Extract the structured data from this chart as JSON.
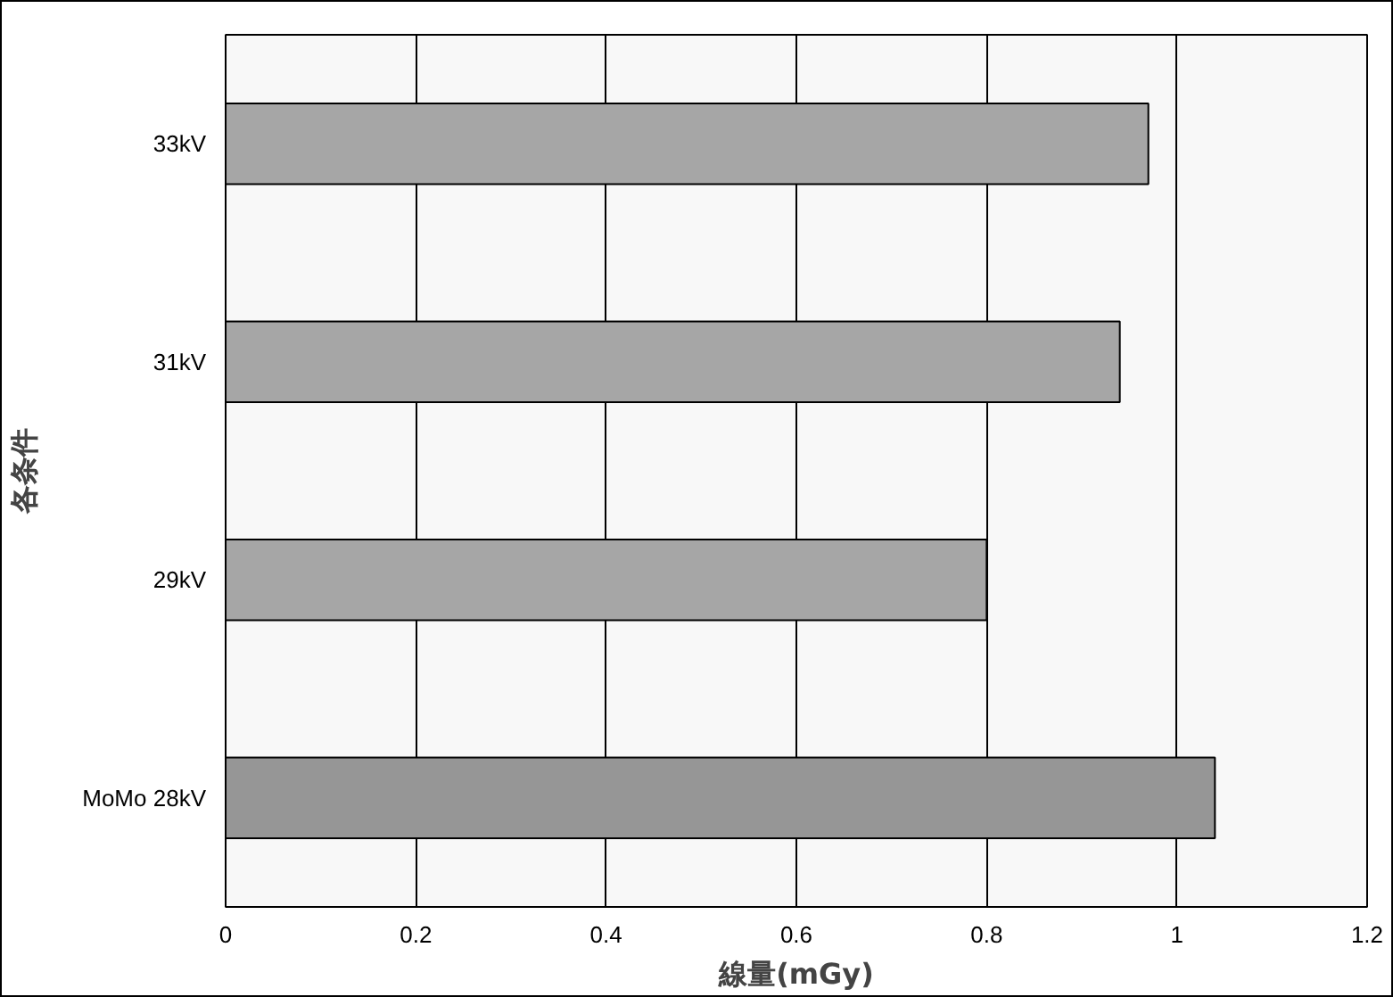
{
  "chart_data": {
    "type": "bar",
    "orientation": "horizontal",
    "xlabel": "線量(mGy)",
    "ylabel": "各条件",
    "categories": [
      "33kV",
      "31kV",
      "29kV",
      "MoMo 28kV"
    ],
    "values": [
      0.97,
      0.94,
      0.8,
      1.04
    ],
    "colors": [
      "#a6a6a6",
      "#a6a6a6",
      "#a6a6a6",
      "#969696"
    ],
    "xlim": [
      0,
      1.2
    ],
    "xticks": [
      0,
      0.2,
      0.4,
      0.6,
      0.8,
      1,
      1.2
    ],
    "grid": "x"
  }
}
